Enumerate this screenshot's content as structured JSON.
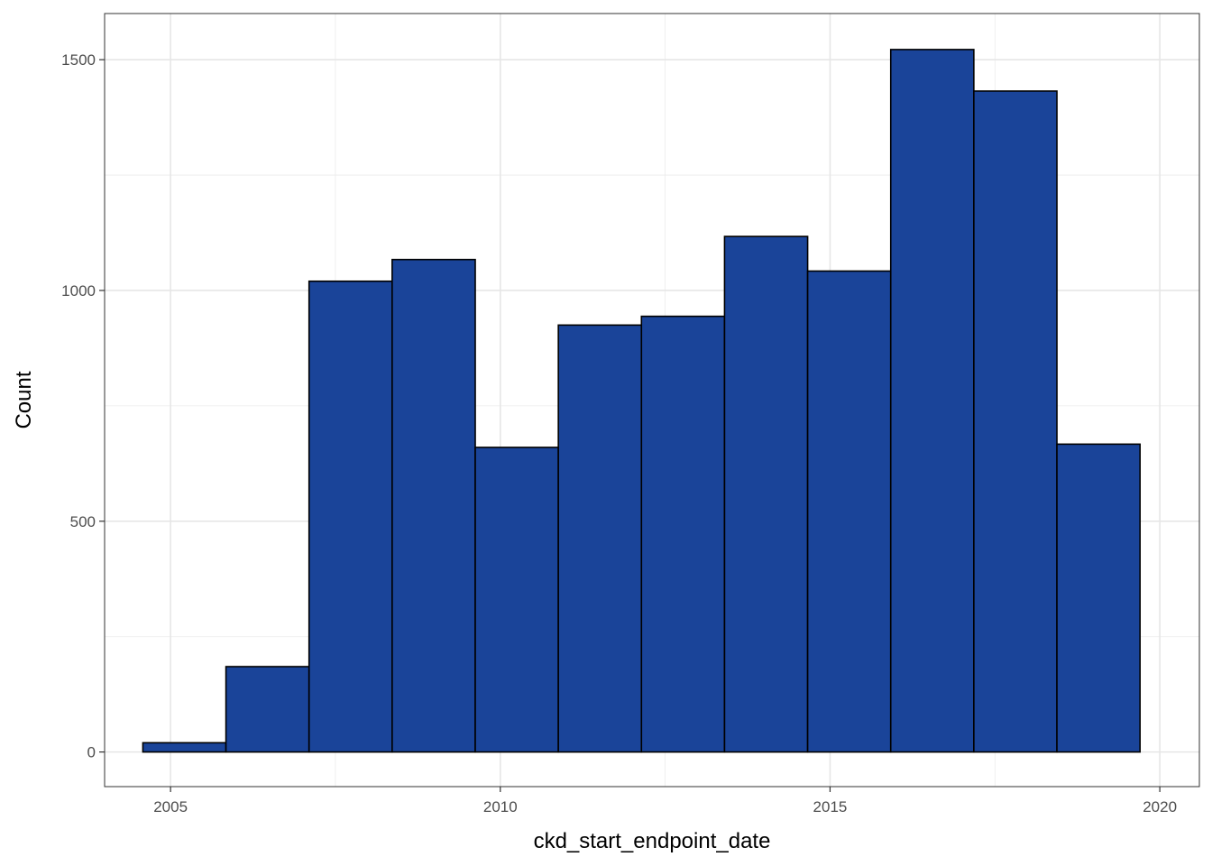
{
  "chart_data": {
    "type": "bar",
    "title": "",
    "xlabel": "ckd_start_endpoint_date",
    "ylabel": "Count",
    "bar_fill": "#1a4499",
    "bar_stroke": "#000000",
    "xlim": [
      2004.0,
      2020.6
    ],
    "ylim": [
      -75,
      1600
    ],
    "xticks": [
      2005,
      2010,
      2015,
      2020
    ],
    "xtick_labels": [
      "2005",
      "2010",
      "2015",
      "2020"
    ],
    "yticks": [
      0,
      500,
      1000,
      1500
    ],
    "ytick_labels": [
      "0",
      "500",
      "1000",
      "1500"
    ],
    "grid": true,
    "bins": [
      {
        "x0": 2004.58,
        "x1": 2005.84,
        "count": 20
      },
      {
        "x0": 2005.84,
        "x1": 2007.1,
        "count": 185
      },
      {
        "x0": 2007.1,
        "x1": 2008.36,
        "count": 1020
      },
      {
        "x0": 2008.36,
        "x1": 2009.62,
        "count": 1067
      },
      {
        "x0": 2009.62,
        "x1": 2010.88,
        "count": 660
      },
      {
        "x0": 2010.88,
        "x1": 2012.14,
        "count": 925
      },
      {
        "x0": 2012.14,
        "x1": 2013.4,
        "count": 944
      },
      {
        "x0": 2013.4,
        "x1": 2014.66,
        "count": 1117
      },
      {
        "x0": 2014.66,
        "x1": 2015.92,
        "count": 1042
      },
      {
        "x0": 2015.92,
        "x1": 2017.18,
        "count": 1522
      },
      {
        "x0": 2017.18,
        "x1": 2018.44,
        "count": 1432
      },
      {
        "x0": 2018.44,
        "x1": 2019.7,
        "count": 667
      }
    ]
  }
}
